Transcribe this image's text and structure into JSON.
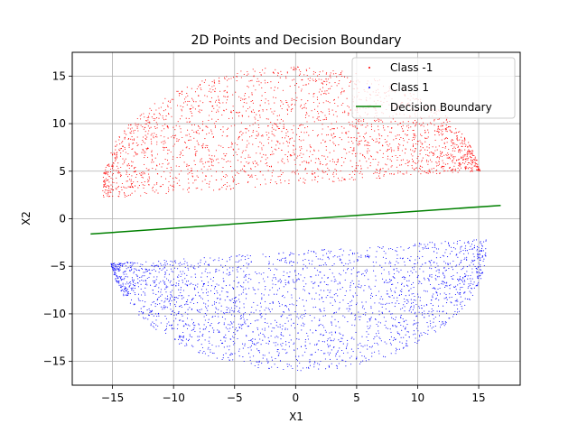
{
  "chart_data": {
    "type": "scatter",
    "title": "2D Points and Decision Boundary",
    "xlabel": "X1",
    "ylabel": "X2",
    "xlim": [
      -18.3,
      18.4
    ],
    "ylim": [
      -17.5,
      17.5
    ],
    "xticks": [
      -15,
      -10,
      -5,
      0,
      5,
      10,
      15
    ],
    "yticks": [
      -15,
      -10,
      -5,
      0,
      5,
      10,
      15
    ],
    "grid": true,
    "legend_position": "top-right",
    "series": [
      {
        "name": "Class -1",
        "kind": "scatter",
        "color": "#ff0000",
        "region": {
          "cx": 0,
          "cy": 3.6,
          "x_min": -15.8,
          "x_max": 15.2,
          "top_rise": 12.4,
          "boundary_slope": 0.095,
          "boundary_offset": 3.6,
          "count": 2500
        }
      },
      {
        "name": "Class 1",
        "kind": "scatter",
        "color": "#0000ff",
        "region": {
          "cx": 0,
          "cy": -3.4,
          "x_min": -15.2,
          "x_max": 15.6,
          "bottom_drop": 12.6,
          "boundary_slope": 0.085,
          "boundary_offset": -3.4,
          "count": 2500
        }
      },
      {
        "name": "Decision Boundary",
        "kind": "line",
        "color": "#008000",
        "x": [
          -16.8,
          16.8
        ],
        "y": [
          -1.6,
          1.4
        ]
      }
    ]
  }
}
